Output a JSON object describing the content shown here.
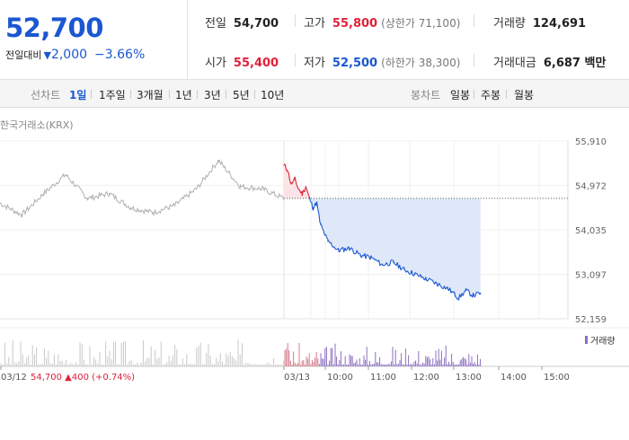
{
  "summary": {
    "price": "52,700",
    "change_label": "전일대비",
    "change_triangle": "▼",
    "change_value": "2,000",
    "change_pct": "−3.66%"
  },
  "stats": {
    "prev": {
      "label": "전일",
      "value": "54,700"
    },
    "high": {
      "label": "고가",
      "value": "55,800",
      "extra": "(상한가 71,100)"
    },
    "volume": {
      "label": "거래량",
      "value": "124,691"
    },
    "open": {
      "label": "시가",
      "value": "55,400"
    },
    "low": {
      "label": "저가",
      "value": "52,500",
      "extra": "(하한가 38,300)"
    },
    "amount": {
      "label": "거래대금",
      "value": "6,687 백만"
    }
  },
  "line_tabs": {
    "title": "선차트",
    "items": [
      "1일",
      "1주일",
      "3개월",
      "1년",
      "3년",
      "5년",
      "10년"
    ],
    "selected": "1일"
  },
  "candle_tabs": {
    "title": "봉차트",
    "items": [
      "일봉",
      "주봉",
      "월봉"
    ]
  },
  "exchange_label": "한국거래소(KRX)",
  "prev_day_info": {
    "date": "03/12",
    "price": "54,700",
    "arrow": "▲",
    "change": "400",
    "pct": "(+0.74%)"
  },
  "volume_legend": "거래량",
  "colors": {
    "accent_blue": "#1b57d1",
    "up_red": "#e0213a",
    "prev_gray": "#b0b0b0",
    "fill_blue": "#dfe8f8",
    "volume_purple": "#8c6fc0"
  },
  "chart_data": {
    "type": "line",
    "ylim": [
      52159,
      55910
    ],
    "y_ticks": [
      "55,910",
      "54,972",
      "54,035",
      "53,097",
      "52,159"
    ],
    "reference_line": 54700,
    "x_axis_labels": [
      "03/12",
      "03/13",
      "10:00",
      "11:00",
      "12:00",
      "13:00",
      "14:00",
      "15:00"
    ],
    "series": [
      {
        "day": "03/12",
        "x": [
          "09:00",
          "09:30",
          "10:00",
          "10:30",
          "11:00",
          "11:30",
          "12:00",
          "12:30",
          "13:00",
          "13:30",
          "14:00",
          "14:30",
          "15:00",
          "15:30"
        ],
        "values": [
          54600,
          54350,
          54800,
          55200,
          54700,
          54800,
          54500,
          54400,
          54550,
          54900,
          55500,
          54950,
          54900,
          54700
        ]
      },
      {
        "day": "03/13",
        "x": [
          "09:00",
          "09:05",
          "09:10",
          "09:15",
          "09:20",
          "09:25",
          "09:30",
          "09:35",
          "09:40",
          "09:45",
          "09:50",
          "10:00",
          "10:15",
          "10:30",
          "10:45",
          "11:00",
          "11:15",
          "11:30",
          "11:45",
          "12:00",
          "12:15",
          "12:30",
          "12:45",
          "13:00",
          "13:10",
          "13:20",
          "13:30"
        ],
        "values": [
          55400,
          55300,
          55000,
          55100,
          54900,
          54800,
          54950,
          54700,
          54500,
          54600,
          54150,
          53800,
          53600,
          53650,
          53500,
          53450,
          53300,
          53350,
          53200,
          53100,
          53000,
          52900,
          52800,
          52600,
          52750,
          52650,
          52700
        ]
      }
    ]
  }
}
